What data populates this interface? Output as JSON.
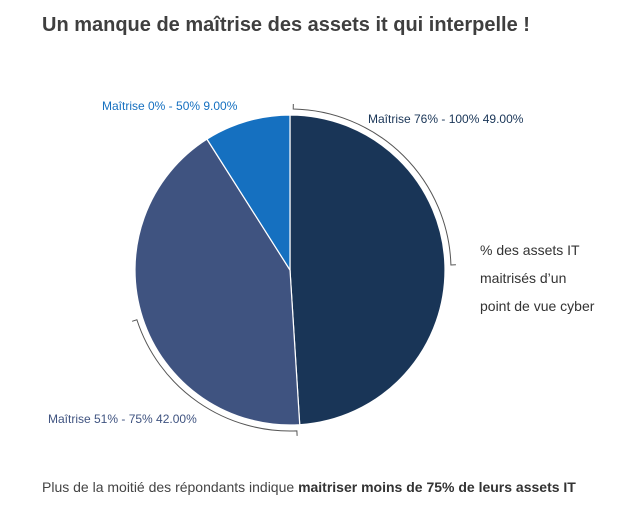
{
  "title": "Un manque de maîtrise des assets it qui interpelle !",
  "legend_lines": [
    "% des assets IT",
    "maitrisés d’un",
    "point de vue cyber"
  ],
  "footer": {
    "text": "Plus de la moitié des répondants indique ",
    "bold": "maitriser moins de 75% de leurs assets IT"
  },
  "chart_data": {
    "type": "pie",
    "title": "Un manque de maîtrise des assets it qui interpelle !",
    "slices": [
      {
        "label": "Maîtrise 76% - 100% 49.00%",
        "value": 49.0,
        "color": "#193557",
        "label_color": "#193557"
      },
      {
        "label": "Maîtrise 51% - 75% 42.00%",
        "value": 42.0,
        "color": "#3f5380",
        "label_color": "#3f5380"
      },
      {
        "label": "Maîtrise 0% - 50% 9.00%",
        "value": 9.0,
        "color": "#1570c0",
        "label_color": "#1570c0"
      }
    ],
    "start_angle": "12 o'clock",
    "direction": "clockwise",
    "legend": "right"
  }
}
